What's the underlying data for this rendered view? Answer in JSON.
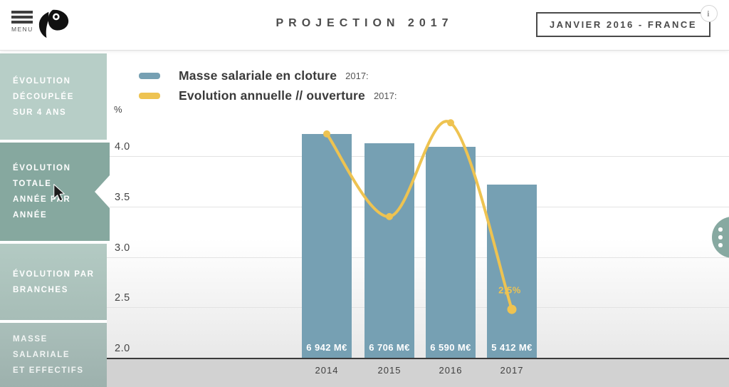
{
  "header": {
    "menu_label": "MENU",
    "title": "PROJECTION 2017",
    "badge": "JANVIER 2016 - FRANCE",
    "info_label": "i"
  },
  "sidebar": {
    "items": [
      {
        "label": "ÉVOLUTION\nDÉCOUPLÉE\nSUR 4 ANS",
        "active": false
      },
      {
        "label": "ÉVOLUTION\nTOTALE\nANNÉE PAR\nANNÉE",
        "active": true
      },
      {
        "label": "ÉVOLUTION PAR\nBRANCHES",
        "active": false
      },
      {
        "label": "MASSE\nSALARIALE\nET EFFECTIFS",
        "active": false
      }
    ]
  },
  "legend": {
    "items": [
      {
        "label": "Masse salariale en cloture",
        "suffix": "2017:",
        "color": "#76a0b3"
      },
      {
        "label": "Evolution annuelle // ouverture",
        "suffix": "2017:",
        "color": "#eec351"
      }
    ]
  },
  "chart_data": {
    "type": "bar",
    "title": "PROJECTION 2017",
    "categories": [
      "2014",
      "2015",
      "2016",
      "2017"
    ],
    "series": [
      {
        "name": "Masse salariale en cloture",
        "type": "bar",
        "color": "#76a0b3",
        "values": [
          4.22,
          4.13,
          4.09,
          3.72
        ],
        "bar_labels": [
          "6 942 M€",
          "6 706 M€",
          "6 590 M€",
          "5 412 M€"
        ]
      },
      {
        "name": "Evolution annuelle // ouverture",
        "type": "line",
        "color": "#eec351",
        "values": [
          4.22,
          3.4,
          4.33,
          2.48
        ],
        "point_label": {
          "index": 3,
          "text": "2,5%"
        }
      }
    ],
    "xlabel": "",
    "ylabel": "%",
    "yticks": [
      "4.0",
      "3.5",
      "3.0",
      "2.5",
      "2.0"
    ],
    "ylim": [
      2.0,
      4.45
    ],
    "grid": true,
    "legend_position": "top-left"
  },
  "colors": {
    "bar": "#76a0b3",
    "line": "#eec351",
    "sidebar_item": "#b7cec7",
    "sidebar_active": "#86a89f",
    "axis": "#3a3a3a",
    "footer_strip": "#d2d2d2"
  }
}
